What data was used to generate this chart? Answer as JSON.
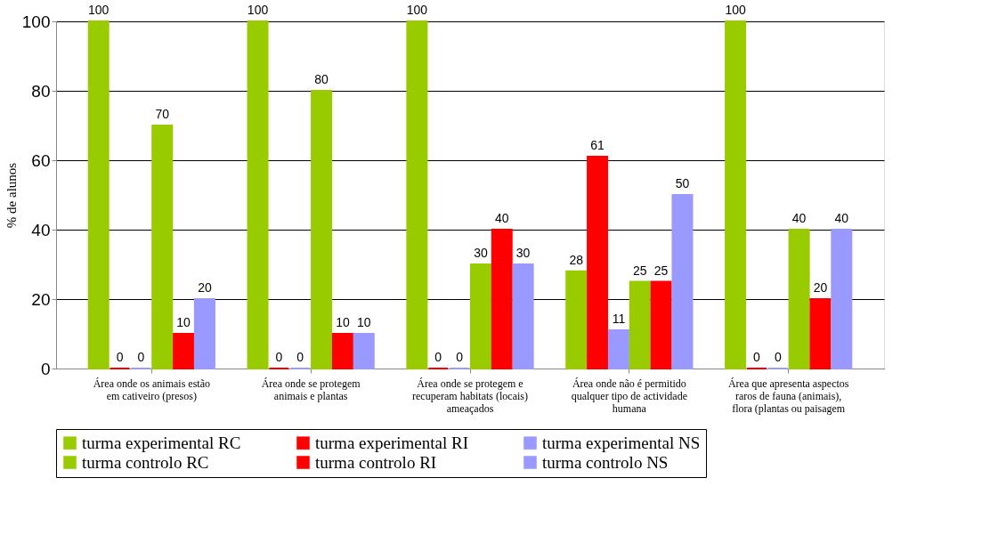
{
  "chart_data": {
    "type": "bar",
    "ylabel": "% de alunos",
    "categories": [
      "Área onde os animais estão em cativeiro (presos)",
      "Área onde se protegem animais e plantas",
      "Área onde se protegem e recuperam habitats (locais) ameaçados",
      "Área onde não é permitido qualquer tipo de actividade humana",
      "Área que apresenta aspectos raros de fauna (animais), flora (plantas ou paisagem"
    ],
    "series": [
      {
        "name": "turma experimental RC",
        "color": "#99cc00",
        "values": [
          100,
          100,
          100,
          28,
          100
        ]
      },
      {
        "name": "turma experimental RI",
        "color": "#ff0000",
        "values": [
          0,
          0,
          0,
          61,
          0
        ]
      },
      {
        "name": "turma experimental NS",
        "color": "#9999ff",
        "values": [
          0,
          0,
          0,
          11,
          0
        ]
      },
      {
        "name": "turma controlo RC",
        "color": "#99cc00",
        "values": [
          70,
          80,
          30,
          25,
          40
        ]
      },
      {
        "name": "turma controlo RI",
        "color": "#ff0000",
        "values": [
          10,
          10,
          40,
          25,
          20
        ]
      },
      {
        "name": "turma controlo NS",
        "color": "#9999ff",
        "values": [
          20,
          10,
          30,
          50,
          40
        ]
      }
    ],
    "ylim": [
      0,
      100
    ],
    "yticks": [
      0,
      20,
      40,
      60,
      80,
      100
    ],
    "grid": "y",
    "legend": "bottom",
    "data_labels": true
  }
}
